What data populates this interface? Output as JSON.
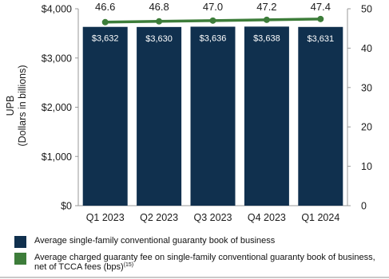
{
  "chart_data": {
    "type": "bar",
    "categories": [
      "Q1 2023",
      "Q2 2023",
      "Q3 2023",
      "Q4 2023",
      "Q1 2024"
    ],
    "series": [
      {
        "name": "Average single-family conventional guaranty book of business",
        "type": "bar",
        "axis": "left",
        "values": [
          3632,
          3630,
          3636,
          3638,
          3631
        ],
        "labels": [
          "$3,632",
          "$3,630",
          "$3,636",
          "$3,638",
          "$3,631"
        ],
        "color": "#10304e"
      },
      {
        "name": "Average charged guaranty fee on single-family conventional guaranty book of business, net of TCCA fees (bps)",
        "name_superscript": "(15)",
        "type": "line",
        "axis": "right",
        "values": [
          46.6,
          46.8,
          47.0,
          47.2,
          47.4
        ],
        "labels": [
          "46.6",
          "46.8",
          "47.0",
          "47.2",
          "47.4"
        ],
        "color": "#3d7d3a"
      }
    ],
    "ylabel": "UPB",
    "ylabel_sub": "(Dollars in billions)",
    "y_left": {
      "lim": [
        0,
        4000
      ],
      "ticks": [
        0,
        1000,
        2000,
        3000,
        4000
      ],
      "tick_labels": [
        "$0",
        "$1,000",
        "$2,000",
        "$3,000",
        "$4,000"
      ]
    },
    "y_right": {
      "lim": [
        0,
        50
      ],
      "ticks": [
        0,
        10,
        20,
        30,
        40,
        50
      ],
      "tick_labels": [
        "0",
        "10",
        "20",
        "30",
        "40",
        "50"
      ]
    },
    "grid": false,
    "legend_position": "bottom"
  },
  "colors": {
    "bar": "#10304e",
    "line": "#3d7d3a",
    "axis": "#9a9a9a",
    "text": "#1a1a1a"
  }
}
